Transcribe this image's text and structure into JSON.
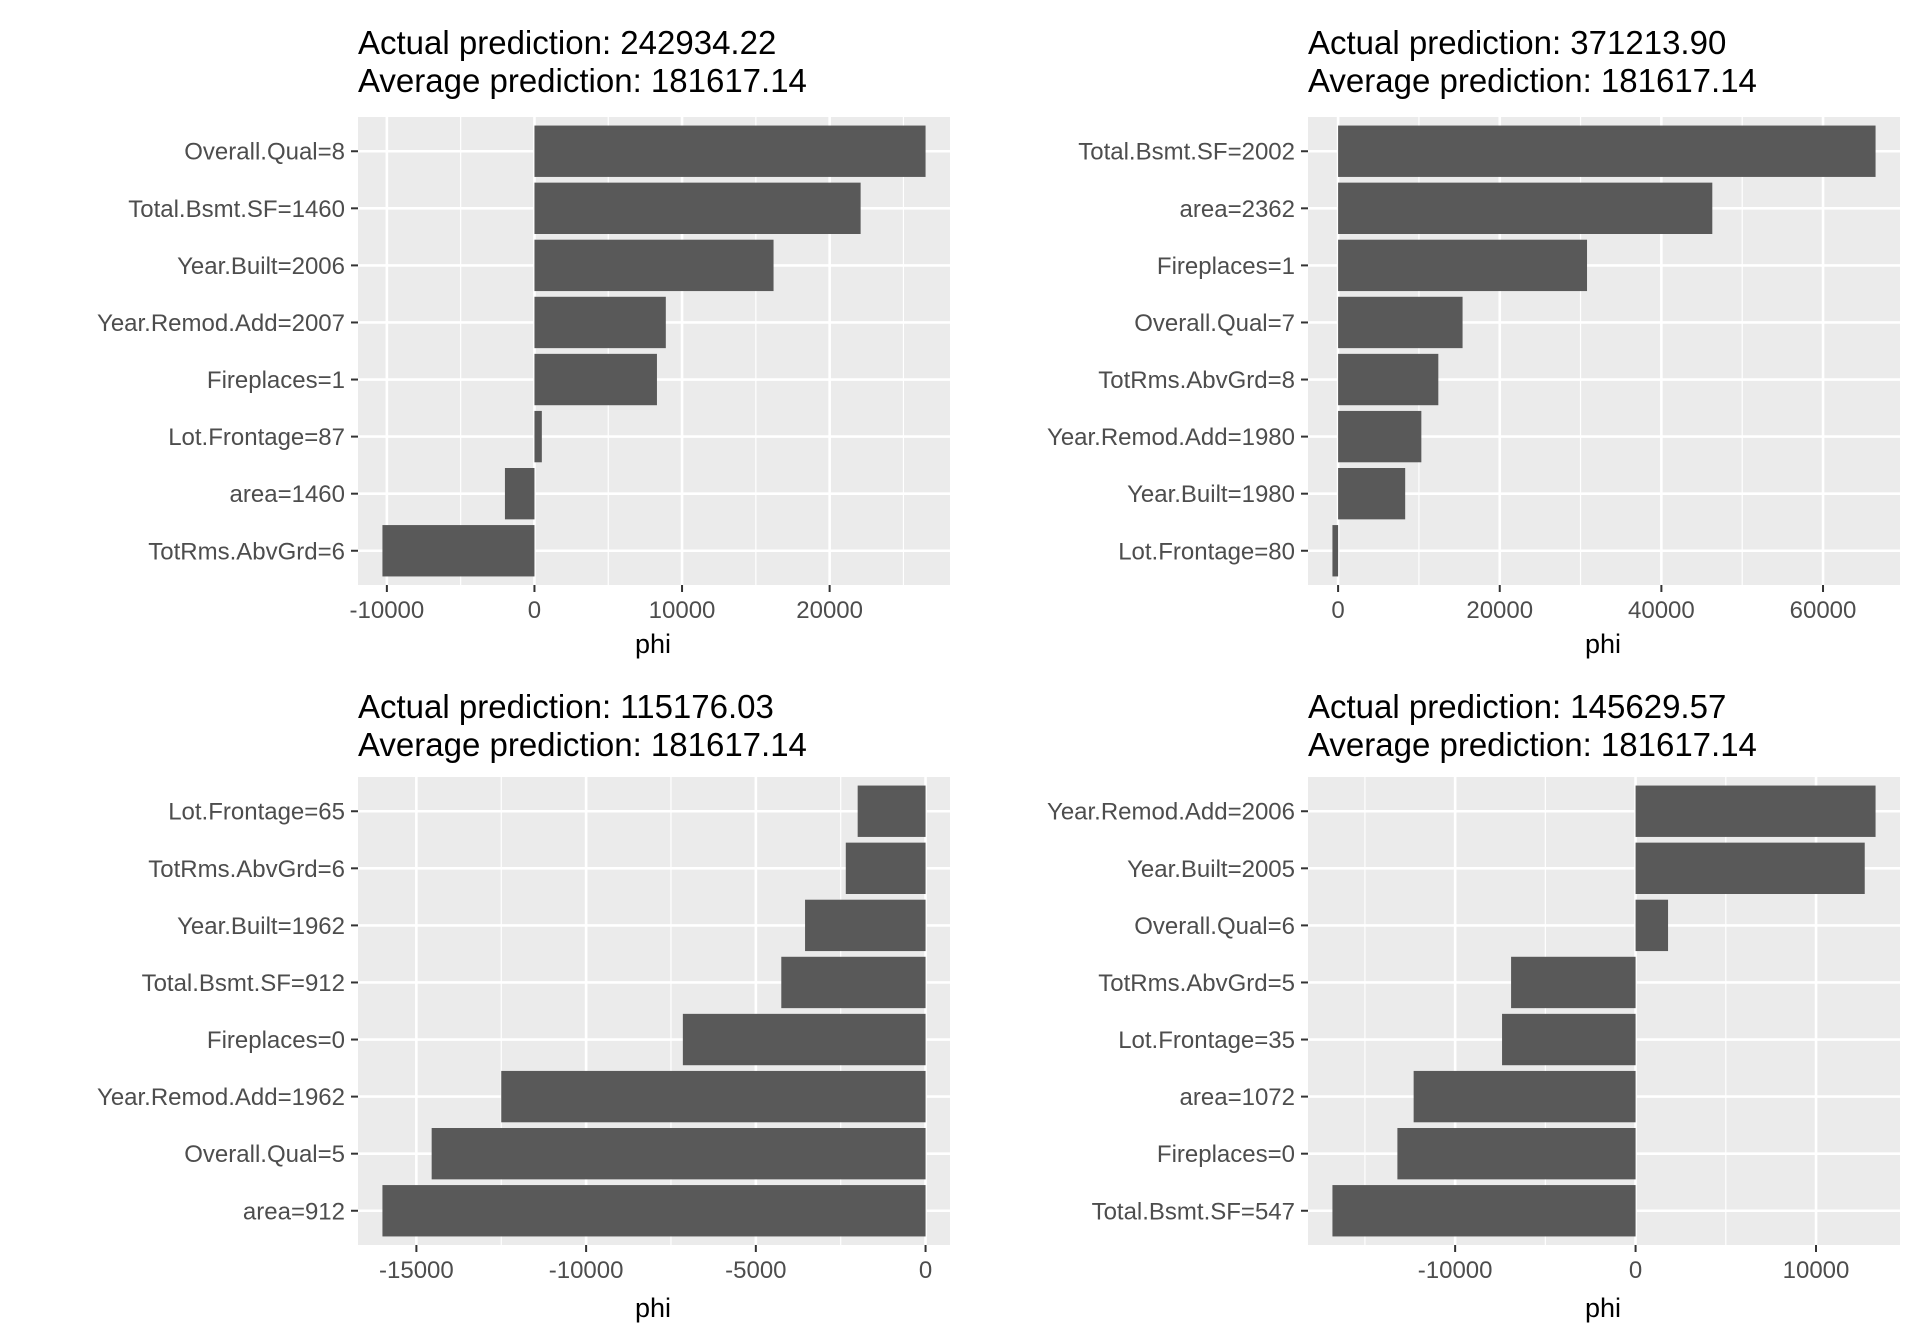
{
  "chart_data": [
    {
      "type": "bar",
      "orientation": "horizontal",
      "title": "Actual prediction: 242934.22",
      "subtitle": "Average prediction: 181617.14",
      "xlabel": "phi",
      "ylabel": "",
      "xlim": [
        -10300,
        26500
      ],
      "xticks": [
        -10000,
        0,
        10000,
        20000
      ],
      "xtick_labels": [
        "-10000",
        "0",
        "10000",
        "20000"
      ],
      "categories": [
        "Overall.Qual=8",
        "Total.Bsmt.SF=1460",
        "Year.Built=2006",
        "Year.Remod.Add=2007",
        "Fireplaces=1",
        "Lot.Frontage=87",
        "area=1460",
        "TotRms.AbvGrd=6"
      ],
      "values": [
        26500,
        22100,
        16200,
        8900,
        8300,
        500,
        -2000,
        -10300
      ],
      "bar_color": "#595959",
      "panel_background": "#ebebeb",
      "grid": true,
      "legend": "none"
    },
    {
      "type": "bar",
      "orientation": "horizontal",
      "title": "Actual prediction: 371213.90",
      "subtitle": "Average prediction: 181617.14",
      "xlabel": "phi",
      "ylabel": "",
      "xlim": [
        -700,
        66500
      ],
      "xticks": [
        0,
        20000,
        40000,
        60000
      ],
      "xtick_labels": [
        "0",
        "20000",
        "40000",
        "60000"
      ],
      "categories": [
        "Total.Bsmt.SF=2002",
        "area=2362",
        "Fireplaces=1",
        "Overall.Qual=7",
        "TotRms.AbvGrd=8",
        "Year.Remod.Add=1980",
        "Year.Built=1980",
        "Lot.Frontage=80"
      ],
      "values": [
        66500,
        46300,
        30800,
        15400,
        12400,
        10300,
        8300,
        -700
      ],
      "bar_color": "#595959",
      "panel_background": "#ebebeb",
      "grid": true,
      "legend": "none"
    },
    {
      "type": "bar",
      "orientation": "horizontal",
      "title": "Actual prediction: 115176.03",
      "subtitle": "Average prediction: 181617.14",
      "xlabel": "phi",
      "ylabel": "",
      "xlim": [
        -16000,
        0
      ],
      "xticks": [
        -15000,
        -10000,
        -5000,
        0
      ],
      "xtick_labels": [
        "-15000",
        "-10000",
        "-5000",
        "0"
      ],
      "categories": [
        "Lot.Frontage=65",
        "TotRms.AbvGrd=6",
        "Year.Built=1962",
        "Total.Bsmt.SF=912",
        "Fireplaces=0",
        "Year.Remod.Add=1962",
        "Overall.Qual=5",
        "area=912"
      ],
      "values": [
        -2000,
        -2350,
        -3550,
        -4250,
        -7150,
        -12500,
        -14550,
        -16000
      ],
      "bar_color": "#595959",
      "panel_background": "#ebebeb",
      "grid": true,
      "legend": "none"
    },
    {
      "type": "bar",
      "orientation": "horizontal",
      "title": "Actual prediction: 145629.57",
      "subtitle": "Average prediction: 181617.14",
      "xlabel": "phi",
      "ylabel": "",
      "xlim": [
        -16800,
        13300
      ],
      "xticks": [
        -10000,
        0,
        10000
      ],
      "xtick_labels": [
        "-10000",
        "0",
        "10000"
      ],
      "categories": [
        "Year.Remod.Add=2006",
        "Year.Built=2005",
        "Overall.Qual=6",
        "TotRms.AbvGrd=5",
        "Lot.Frontage=35",
        "area=1072",
        "Fireplaces=0",
        "Total.Bsmt.SF=547"
      ],
      "values": [
        13300,
        12700,
        1800,
        -6900,
        -7400,
        -12300,
        -13200,
        -16800
      ],
      "bar_color": "#595959",
      "panel_background": "#ebebeb",
      "grid": true,
      "legend": "none"
    }
  ]
}
